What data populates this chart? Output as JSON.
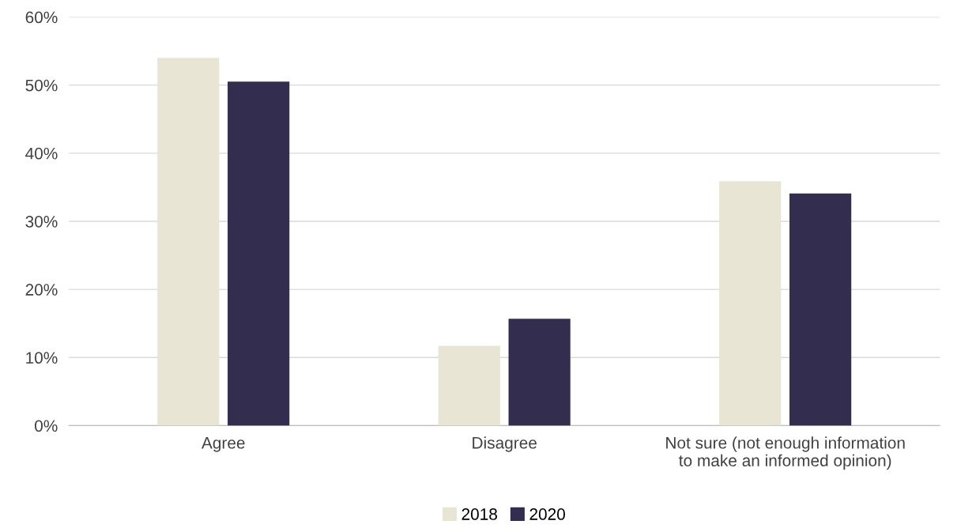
{
  "chart_data": {
    "type": "bar",
    "categories": [
      "Agree",
      "Disagree",
      "Not sure (not enough information\nto make an informed opinion)"
    ],
    "series": [
      {
        "name": "2018",
        "color": "#e8e5d5",
        "values": [
          54,
          11.7,
          35.9
        ]
      },
      {
        "name": "2020",
        "color": "#332d50",
        "values": [
          50.5,
          15.7,
          34.1
        ]
      }
    ],
    "ylim": [
      0,
      60
    ],
    "yticks": [
      {
        "value": 0,
        "label": "0%"
      },
      {
        "value": 10,
        "label": "10%"
      },
      {
        "value": 20,
        "label": "20%"
      },
      {
        "value": 30,
        "label": "30%"
      },
      {
        "value": 40,
        "label": "40%"
      },
      {
        "value": 50,
        "label": "50%"
      },
      {
        "value": 60,
        "label": "60%"
      }
    ],
    "grid": "y",
    "legend": "bottom"
  }
}
